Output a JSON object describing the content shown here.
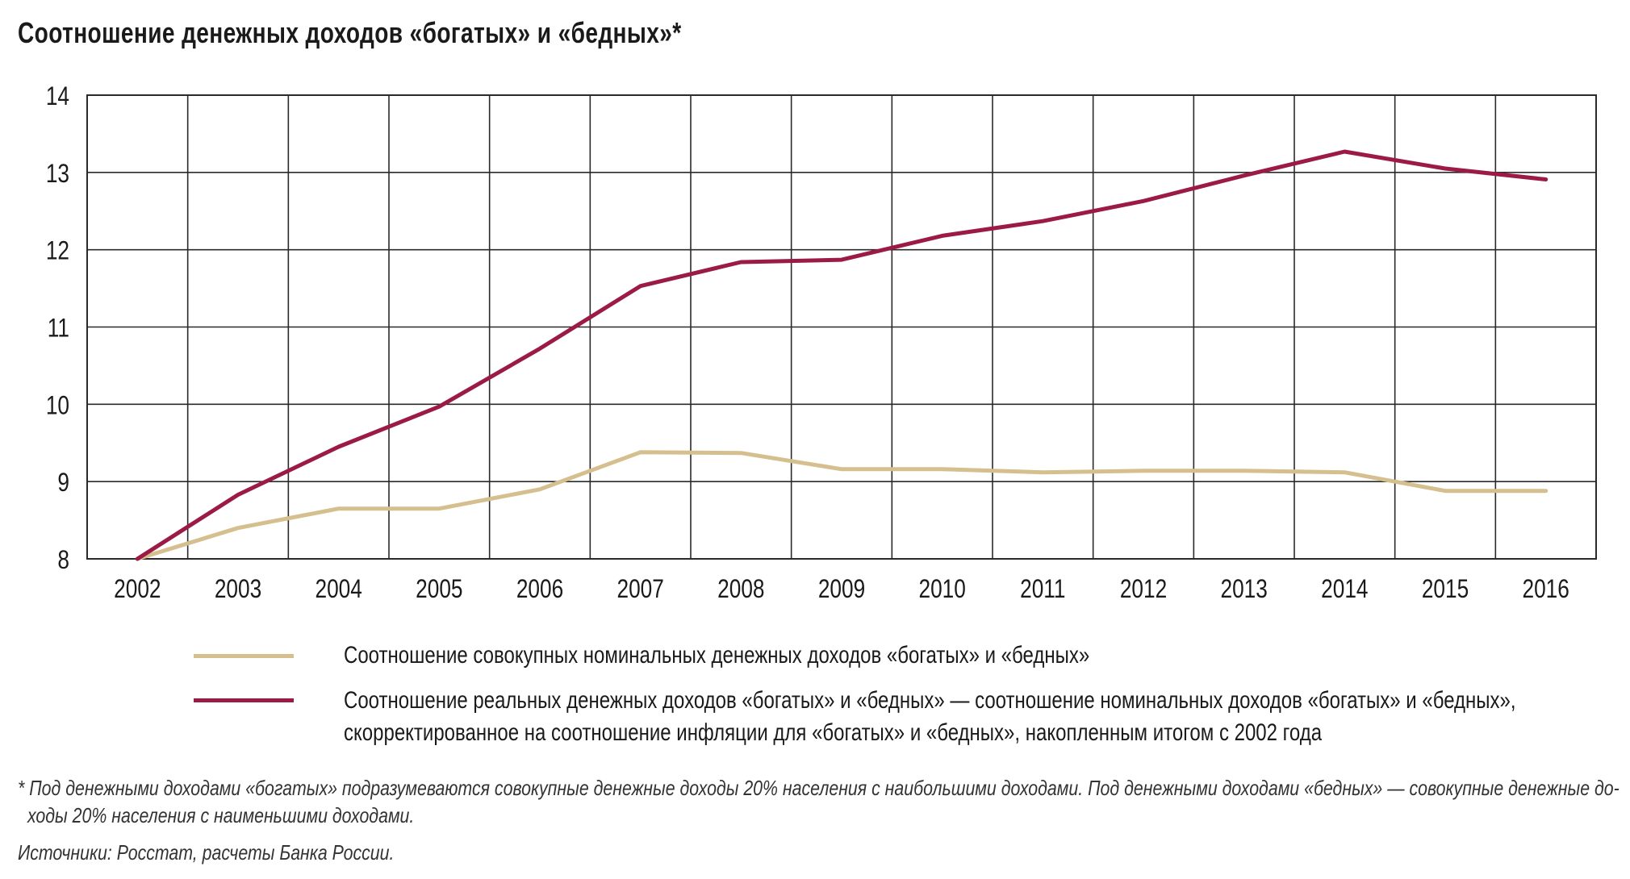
{
  "title": "Соотношение денежных доходов «богатых» и «бедных»*",
  "chart_data": {
    "type": "line",
    "x": [
      2002,
      2003,
      2004,
      2005,
      2006,
      2007,
      2008,
      2009,
      2010,
      2011,
      2012,
      2013,
      2014,
      2015,
      2016
    ],
    "ylim": [
      8,
      14
    ],
    "yticks": [
      8,
      9,
      10,
      11,
      12,
      13,
      14
    ],
    "grid": true,
    "series": [
      {
        "name": "Соотношение совокупных номинальных денежных доходов «богатых» и «бедных»",
        "color": "#d5bf8e",
        "values": [
          8.0,
          8.4,
          8.65,
          8.65,
          8.9,
          9.38,
          9.37,
          9.16,
          9.16,
          9.12,
          9.14,
          9.14,
          9.12,
          8.88,
          8.88
        ]
      },
      {
        "name": "Соотношение реальных денежных доходов «богатых» и «бедных» — соотношение номинальных доходов «богатых» и «бедных», скорректированное на соотношение инфляции для «богатых» и «бедных», накопленным итогом с 2002 года",
        "color": "#9b1b45",
        "values": [
          8.0,
          8.83,
          9.45,
          9.97,
          10.72,
          11.53,
          11.84,
          11.87,
          12.18,
          12.37,
          12.63,
          12.96,
          13.27,
          13.05,
          12.91
        ]
      }
    ],
    "legend": {
      "position": "bottom",
      "nominal_label": "Соотношение совокупных номинальных денежных доходов «богатых» и «бедных»",
      "real_label_line1": "Соотношение реальных денежных доходов «богатых» и «бедных» — соотношение номинальных доходов «богатых» и «бедных»,",
      "real_label_line2": "скорректированное на соотношение инфляции для «богатых» и «бедных», накопленным итогом с 2002 года"
    }
  },
  "footnote": {
    "line1": "* Под денежными доходами «богатых» подразумеваются совокупные денежные доходы 20% населения с наибольшими доходами. Под денежными доходами «бедных» — совокупные денежные до-",
    "line2": "ходы 20% населения с наименьшими доходами.",
    "sources": "Источники: Росстат, расчеты Банка России."
  }
}
